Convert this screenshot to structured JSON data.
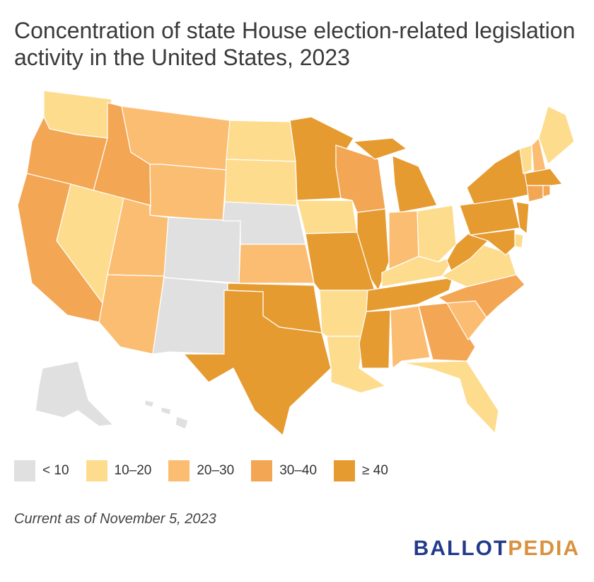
{
  "title": "Concentration of state House election-related legislation activity in the United States, 2023",
  "note": "Current as of November 5, 2023",
  "logo": {
    "part1": "BALLOT",
    "part2": "PEDIA"
  },
  "legend": [
    {
      "label": "< 10",
      "color": "#e0e0e0"
    },
    {
      "label": "10–20",
      "color": "#fddc8e"
    },
    {
      "label": "20–30",
      "color": "#fbbd72"
    },
    {
      "label": "30–40",
      "color": "#f3a653"
    },
    {
      "label": "≥ 40",
      "color": "#e69b30"
    }
  ],
  "states": [
    {
      "name": "WA",
      "bin": 1
    },
    {
      "name": "OR",
      "bin": 3
    },
    {
      "name": "CA",
      "bin": 3
    },
    {
      "name": "ID",
      "bin": 3
    },
    {
      "name": "NV",
      "bin": 1
    },
    {
      "name": "MT",
      "bin": 2
    },
    {
      "name": "WY",
      "bin": 2
    },
    {
      "name": "UT",
      "bin": 2
    },
    {
      "name": "AZ",
      "bin": 2
    },
    {
      "name": "CO",
      "bin": 0
    },
    {
      "name": "NM",
      "bin": 0
    },
    {
      "name": "ND",
      "bin": 1
    },
    {
      "name": "SD",
      "bin": 1
    },
    {
      "name": "NE",
      "bin": 0
    },
    {
      "name": "KS",
      "bin": 2
    },
    {
      "name": "OK",
      "bin": 4
    },
    {
      "name": "TX",
      "bin": 4
    },
    {
      "name": "MN",
      "bin": 4
    },
    {
      "name": "IA",
      "bin": 1
    },
    {
      "name": "MO",
      "bin": 4
    },
    {
      "name": "AR",
      "bin": 1
    },
    {
      "name": "LA",
      "bin": 1
    },
    {
      "name": "WI",
      "bin": 3
    },
    {
      "name": "IL",
      "bin": 4
    },
    {
      "name": "MI",
      "bin": 4
    },
    {
      "name": "IN",
      "bin": 2
    },
    {
      "name": "OH",
      "bin": 1
    },
    {
      "name": "KY",
      "bin": 1
    },
    {
      "name": "TN",
      "bin": 4
    },
    {
      "name": "MS",
      "bin": 4
    },
    {
      "name": "AL",
      "bin": 2
    },
    {
      "name": "GA",
      "bin": 3
    },
    {
      "name": "FL",
      "bin": 1
    },
    {
      "name": "SC",
      "bin": 2
    },
    {
      "name": "NC",
      "bin": 3
    },
    {
      "name": "VA",
      "bin": 1
    },
    {
      "name": "WV",
      "bin": 4
    },
    {
      "name": "PA",
      "bin": 4
    },
    {
      "name": "NY",
      "bin": 4
    },
    {
      "name": "NJ",
      "bin": 4
    },
    {
      "name": "DE",
      "bin": 1
    },
    {
      "name": "MD",
      "bin": 4
    },
    {
      "name": "VT",
      "bin": 1
    },
    {
      "name": "NH",
      "bin": 2
    },
    {
      "name": "ME",
      "bin": 1
    },
    {
      "name": "MA",
      "bin": 4
    },
    {
      "name": "CT",
      "bin": 3
    },
    {
      "name": "RI",
      "bin": 3
    },
    {
      "name": "AK",
      "bin": 0
    },
    {
      "name": "HI",
      "bin": 0
    }
  ]
}
